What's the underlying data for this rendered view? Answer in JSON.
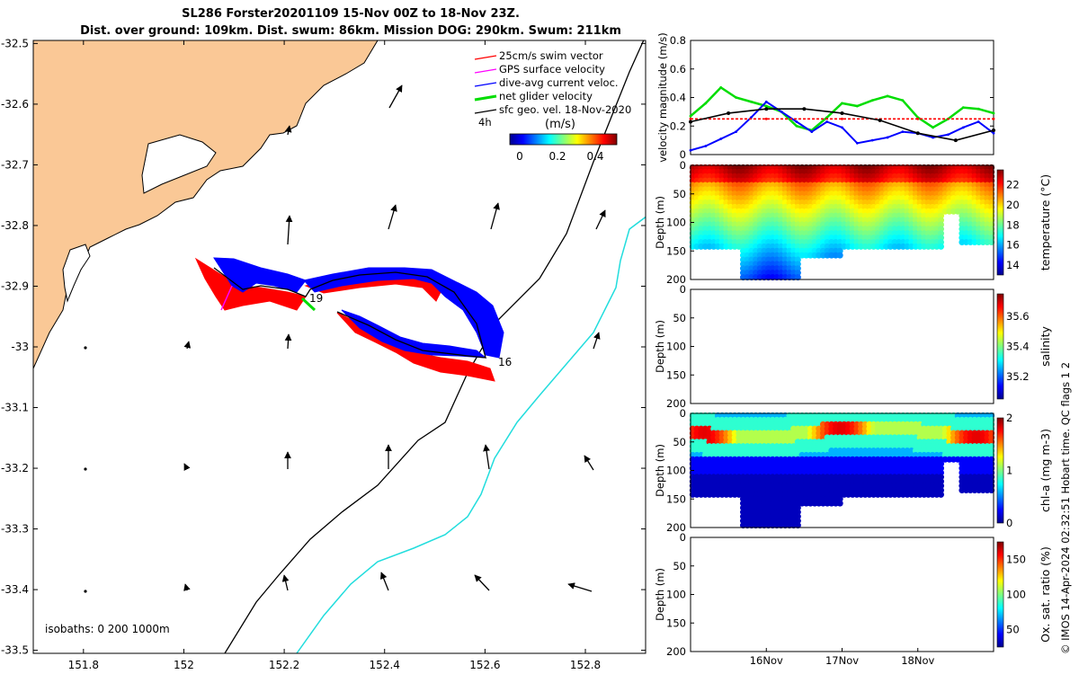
{
  "title": {
    "line1": "SL286 Forster20201109 15-Nov 00Z to 18-Nov 23Z.",
    "line2": "Dist. over ground: 109km. Dist. swum: 86km. Mission DOG: 290km. Swum: 211km"
  },
  "credit": "© IMOS 14-Apr-2024 02:32:51 Hobart time. QC flags 1  2",
  "map": {
    "lon_ticks": [
      "151.8",
      "152",
      "152.2",
      "152.4",
      "152.6",
      "152.8"
    ],
    "lat_ticks": [
      "-32.5",
      "-32.6",
      "-32.7",
      "-32.8",
      "-32.9",
      "-33",
      "-33.1",
      "-33.2",
      "-33.3",
      "-33.4",
      "-33.5"
    ],
    "lon_range": [
      151.7,
      152.92
    ],
    "lat_range": [
      -33.505,
      -32.495
    ],
    "legend": [
      {
        "label": "25cm/s swim vector",
        "color": "#ff0000"
      },
      {
        "label": "GPS surface velocity",
        "color": "#ff00ff"
      },
      {
        "label": "dive-avg current veloc.",
        "color": "#0000ff"
      },
      {
        "label": "net glider velocity",
        "color": "#00dd00"
      },
      {
        "label": "sfc geo. vel. 18-Nov-2020",
        "color": "#000000"
      }
    ],
    "time_label": "4h",
    "colorbar": {
      "unit": "(m/s)",
      "ticks": [
        "0",
        "0.2",
        "0.4"
      ]
    },
    "isobaths_label": "isobaths: 0   200  1000m",
    "day_labels": [
      "19",
      "16"
    ],
    "colors": {
      "land": "#fac896",
      "track_red": "#ff0000",
      "track_blue": "#0000ff",
      "isobath_200": "#000000",
      "isobath_1000": "#22dddd"
    }
  },
  "chart_data": [
    {
      "type": "line",
      "ylabel": "velocity magnitude (m/s)",
      "ylim": [
        0,
        0.8
      ],
      "yticks": [
        "0",
        "0.2",
        "0.4",
        "0.6",
        "0.8"
      ],
      "xlim": [
        "15-Nov",
        "19-Nov"
      ],
      "series": [
        {
          "name": "net glider velocity",
          "color": "#00dd00",
          "x": [
            15.0,
            15.2,
            15.4,
            15.6,
            15.8,
            16.0,
            16.2,
            16.4,
            16.6,
            16.8,
            17.0,
            17.2,
            17.4,
            17.6,
            17.8,
            18.0,
            18.2,
            18.4,
            18.6,
            18.8,
            19.0
          ],
          "values": [
            0.27,
            0.36,
            0.47,
            0.4,
            0.37,
            0.34,
            0.3,
            0.2,
            0.17,
            0.26,
            0.36,
            0.34,
            0.38,
            0.41,
            0.38,
            0.26,
            0.19,
            0.25,
            0.33,
            0.32,
            0.29
          ]
        },
        {
          "name": "dive-avg current veloc.",
          "color": "#0000ff",
          "x": [
            15.0,
            15.2,
            15.4,
            15.6,
            15.8,
            16.0,
            16.2,
            16.4,
            16.6,
            16.8,
            17.0,
            17.2,
            17.4,
            17.6,
            17.8,
            18.0,
            18.2,
            18.4,
            18.6,
            18.8,
            19.0
          ],
          "values": [
            0.03,
            0.06,
            0.11,
            0.16,
            0.26,
            0.37,
            0.3,
            0.23,
            0.16,
            0.23,
            0.19,
            0.08,
            0.1,
            0.12,
            0.16,
            0.15,
            0.12,
            0.14,
            0.19,
            0.23,
            0.15
          ]
        },
        {
          "name": "swim speed",
          "color": "#ff0000",
          "x": [
            15.0,
            16.0,
            17.0,
            18.0,
            19.0
          ],
          "values": [
            0.25,
            0.25,
            0.25,
            0.25,
            0.25
          ]
        },
        {
          "name": "sfc geo. vel.",
          "color": "#000000",
          "x": [
            15.0,
            15.5,
            16.0,
            16.5,
            17.0,
            17.5,
            18.0,
            18.5,
            19.0
          ],
          "values": [
            0.23,
            0.29,
            0.32,
            0.32,
            0.29,
            0.24,
            0.15,
            0.1,
            0.17
          ]
        }
      ]
    },
    {
      "type": "heatmap",
      "ylabel": "Depth (m)",
      "colorbar_label": "temperature (°C)",
      "colorbar_ticks": [
        "14",
        "16",
        "18",
        "20",
        "22"
      ],
      "clim": [
        13,
        23.5
      ],
      "yticks": [
        "0",
        "50",
        "100",
        "150",
        "200"
      ]
    },
    {
      "type": "heatmap",
      "ylabel": "Depth (m)",
      "colorbar_label": "salinity",
      "colorbar_ticks": [
        "35.2",
        "35.4",
        "35.6"
      ],
      "clim": [
        35.05,
        35.75
      ],
      "yticks": [
        "0",
        "50",
        "100",
        "150",
        "200"
      ]
    },
    {
      "type": "heatmap",
      "ylabel": "Depth (m)",
      "colorbar_label": "chl-a (mg m-3)",
      "colorbar_ticks": [
        "0",
        "1",
        "2"
      ],
      "clim": [
        0,
        2
      ],
      "yticks": [
        "0",
        "50",
        "100",
        "150",
        "200"
      ]
    },
    {
      "type": "heatmap",
      "ylabel": "Depth (m)",
      "colorbar_label": "Ox. sat. ratio (%)",
      "colorbar_ticks": [
        "50",
        "100",
        "150"
      ],
      "clim": [
        25,
        175
      ],
      "yticks": [
        "0",
        "50",
        "100",
        "150",
        "200"
      ],
      "xticks": [
        "16Nov",
        "17Nov",
        "18Nov"
      ]
    }
  ]
}
